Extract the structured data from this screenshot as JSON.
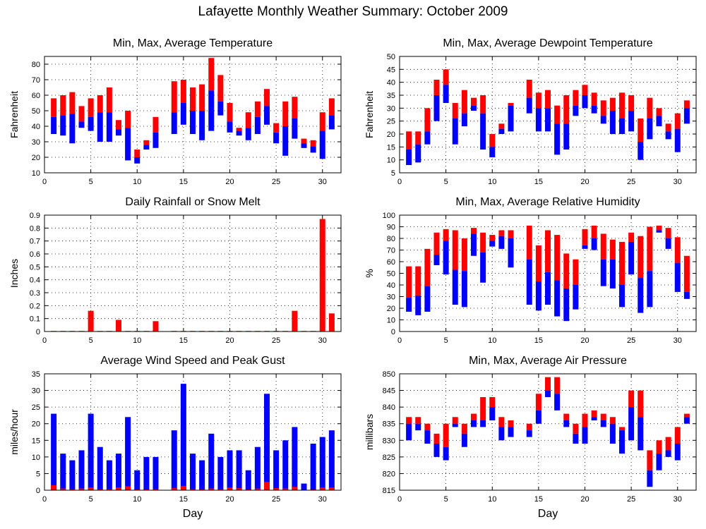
{
  "figure_title": "Lafayette Monthly Weather Summary: October 2009",
  "colors": {
    "max_part": "#ff0000",
    "min_part": "#0000ff",
    "grid": "#000000"
  },
  "chart_data": [
    {
      "id": "temp",
      "type": "bar",
      "title": "Min, Max, Average Temperature",
      "xlabel": "",
      "ylabel": "Fahrenheit",
      "xlim": [
        0,
        32
      ],
      "ylim": [
        10,
        85
      ],
      "xticks": [
        0,
        5,
        10,
        15,
        20,
        25,
        30
      ],
      "yticks": [
        10,
        20,
        30,
        40,
        50,
        60,
        70,
        80
      ],
      "days": [
        1,
        2,
        3,
        4,
        5,
        6,
        7,
        8,
        9,
        10,
        11,
        12,
        13,
        14,
        15,
        16,
        17,
        18,
        19,
        20,
        21,
        22,
        23,
        24,
        25,
        26,
        27,
        28,
        29,
        30,
        31
      ],
      "max": [
        58,
        60,
        62,
        53,
        58,
        60,
        65,
        44,
        50,
        25,
        31,
        46,
        null,
        69,
        70,
        65,
        67,
        84,
        73,
        55,
        39,
        49,
        56,
        64,
        42,
        56,
        59,
        32,
        31,
        49,
        58
      ],
      "avg": [
        46,
        47,
        48,
        43,
        46,
        49,
        49,
        38,
        39,
        20,
        28,
        36,
        null,
        49,
        55,
        50,
        50,
        63,
        56,
        43,
        37,
        39,
        46,
        53,
        36,
        40,
        45,
        29,
        27,
        37,
        47
      ],
      "min": [
        35,
        34,
        29,
        39,
        37,
        30,
        30,
        34,
        18,
        16,
        25,
        26,
        null,
        35,
        41,
        35,
        31,
        37,
        47,
        36,
        34,
        31,
        35,
        41,
        29,
        21,
        32,
        26,
        23,
        19,
        38
      ]
    },
    {
      "id": "dewpoint",
      "type": "bar",
      "title": "Min, Max, Average Dewpoint Temperature",
      "xlabel": "",
      "ylabel": "Fahrenheit",
      "xlim": [
        0,
        32
      ],
      "ylim": [
        5,
        50
      ],
      "xticks": [
        0,
        5,
        10,
        15,
        20,
        25,
        30
      ],
      "yticks": [
        5,
        10,
        15,
        20,
        25,
        30,
        35,
        40,
        45,
        50
      ],
      "days": [
        1,
        2,
        3,
        4,
        5,
        6,
        7,
        8,
        9,
        10,
        11,
        12,
        13,
        14,
        15,
        16,
        17,
        18,
        19,
        20,
        21,
        22,
        23,
        24,
        25,
        26,
        27,
        28,
        29,
        30,
        31
      ],
      "max": [
        21,
        21,
        30,
        41,
        45,
        32,
        37,
        34,
        35,
        20,
        24,
        32,
        null,
        41,
        36,
        37,
        31,
        35,
        37,
        39,
        36,
        33,
        34,
        36,
        35,
        26,
        34,
        30,
        24,
        28,
        33
      ],
      "avg": [
        14,
        16,
        21,
        35,
        39,
        26,
        28,
        31,
        28,
        15,
        22,
        31,
        null,
        34,
        30,
        30,
        24,
        24,
        31,
        35,
        31,
        27,
        29,
        26,
        29,
        17,
        26,
        27,
        21,
        22,
        30
      ],
      "min": [
        8,
        9,
        16,
        25,
        32,
        16,
        23,
        29,
        14,
        11,
        20,
        21,
        null,
        28,
        21,
        21,
        12,
        14,
        27,
        30,
        28,
        24,
        20,
        20,
        21,
        10,
        18,
        23,
        18,
        13,
        24
      ]
    },
    {
      "id": "rain",
      "type": "bar",
      "title": "Daily Rainfall or Snow Melt",
      "xlabel": "",
      "ylabel": "Inches",
      "xlim": [
        0,
        32
      ],
      "ylim": [
        0,
        0.9
      ],
      "xticks": [
        0,
        5,
        10,
        15,
        20,
        25,
        30
      ],
      "yticks": [
        0,
        0.1,
        0.2,
        0.3,
        0.4,
        0.5,
        0.6,
        0.7,
        0.8,
        0.9
      ],
      "ytick_labels": [
        "0",
        "0.1",
        "0.2",
        "0.3",
        "0.4",
        "0.5",
        "0.6",
        "0.7",
        "0.8",
        "0.9"
      ],
      "days": [
        1,
        2,
        3,
        4,
        5,
        6,
        7,
        8,
        9,
        10,
        11,
        12,
        13,
        14,
        15,
        16,
        17,
        18,
        19,
        20,
        21,
        22,
        23,
        24,
        25,
        26,
        27,
        28,
        29,
        30,
        31
      ],
      "values": [
        0,
        0,
        0,
        0,
        0.16,
        0,
        0,
        0.09,
        0,
        0,
        0,
        0.08,
        null,
        0,
        0,
        0,
        0,
        0,
        0,
        0,
        0,
        0,
        0,
        0,
        0,
        0,
        0.16,
        0,
        0,
        0.87,
        0.14
      ]
    },
    {
      "id": "humidity",
      "type": "bar",
      "title": "Min, Max, Average Relative Humidity",
      "xlabel": "",
      "ylabel": "%",
      "xlim": [
        0,
        32
      ],
      "ylim": [
        0,
        100
      ],
      "xticks": [
        0,
        5,
        10,
        15,
        20,
        25,
        30
      ],
      "yticks": [
        0,
        10,
        20,
        30,
        40,
        50,
        60,
        70,
        80,
        90,
        100
      ],
      "days": [
        1,
        2,
        3,
        4,
        5,
        6,
        7,
        8,
        9,
        10,
        11,
        12,
        13,
        14,
        15,
        16,
        17,
        18,
        19,
        20,
        21,
        22,
        23,
        24,
        25,
        26,
        27,
        28,
        29,
        30,
        31
      ],
      "max": [
        56,
        56,
        71,
        85,
        88,
        87,
        80,
        89,
        85,
        83,
        87,
        87,
        null,
        91,
        74,
        87,
        83,
        67,
        62,
        88,
        91,
        84,
        79,
        77,
        85,
        82,
        90,
        91,
        89,
        81,
        65
      ],
      "avg": [
        29,
        31,
        39,
        66,
        78,
        53,
        52,
        84,
        68,
        78,
        82,
        80,
        null,
        62,
        43,
        51,
        44,
        37,
        40,
        74,
        80,
        62,
        62,
        40,
        77,
        46,
        52,
        87,
        80,
        59,
        34
      ],
      "min": [
        17,
        14,
        17,
        57,
        49,
        23,
        21,
        65,
        42,
        73,
        71,
        55,
        null,
        23,
        18,
        23,
        13,
        9,
        19,
        71,
        70,
        39,
        37,
        21,
        49,
        16,
        21,
        85,
        71,
        34,
        28
      ]
    },
    {
      "id": "wind",
      "type": "bar",
      "title": "Average Wind Speed and Peak Gust",
      "xlabel": "Day",
      "ylabel": "miles/hour",
      "xlim": [
        0,
        32
      ],
      "ylim": [
        0,
        35
      ],
      "xticks": [
        0,
        5,
        10,
        15,
        20,
        25,
        30
      ],
      "yticks": [
        0,
        5,
        10,
        15,
        20,
        25,
        30,
        35
      ],
      "days": [
        1,
        2,
        3,
        4,
        5,
        6,
        7,
        8,
        9,
        10,
        11,
        12,
        13,
        14,
        15,
        16,
        17,
        18,
        19,
        20,
        21,
        22,
        23,
        24,
        25,
        26,
        27,
        28,
        29,
        30,
        31
      ],
      "peak_gust": [
        23,
        11,
        9,
        12,
        23,
        13,
        9,
        11,
        22,
        6,
        10,
        10,
        null,
        18,
        32,
        11,
        9,
        17,
        10,
        12,
        12,
        6,
        13,
        29,
        12,
        15,
        19,
        2,
        14,
        16,
        18
      ],
      "avg_speed": [
        1.5,
        0.5,
        0.3,
        0.5,
        0.8,
        0.3,
        0.3,
        0.8,
        1.2,
        0.2,
        0.2,
        0.3,
        null,
        0.6,
        1.3,
        0.3,
        0.3,
        0.5,
        0.3,
        0.8,
        0.6,
        0.2,
        0.5,
        2.5,
        0.6,
        0.5,
        1,
        0.1,
        0.2,
        0.8,
        0.8
      ]
    },
    {
      "id": "pressure",
      "type": "bar",
      "title": "Min, Max, Average Air Pressure",
      "xlabel": "Day",
      "ylabel": "millibars",
      "xlim": [
        0,
        32
      ],
      "ylim": [
        815,
        850
      ],
      "xticks": [
        0,
        5,
        10,
        15,
        20,
        25,
        30
      ],
      "yticks": [
        815,
        820,
        825,
        830,
        835,
        840,
        845,
        850
      ],
      "days": [
        1,
        2,
        3,
        4,
        5,
        6,
        7,
        8,
        9,
        10,
        11,
        12,
        13,
        14,
        15,
        16,
        17,
        18,
        19,
        20,
        21,
        22,
        23,
        24,
        25,
        26,
        27,
        28,
        29,
        30,
        31
      ],
      "max": [
        837,
        837,
        835,
        832,
        835,
        837,
        835,
        838,
        843,
        843,
        837,
        836,
        null,
        835,
        844,
        849,
        849,
        838,
        835,
        838,
        839,
        838,
        837,
        834,
        845,
        845,
        827,
        830,
        831,
        834,
        838
      ],
      "avg": [
        835,
        835,
        833,
        829,
        828,
        835,
        832,
        836,
        836,
        840,
        834,
        834,
        null,
        833,
        839,
        845,
        844,
        836,
        832,
        834,
        837,
        836,
        835,
        833,
        840,
        837,
        821,
        826,
        827,
        829,
        837
      ],
      "min": [
        830,
        833,
        829,
        825,
        824,
        834,
        828,
        834,
        834,
        836,
        830,
        831,
        null,
        831,
        835,
        843,
        839,
        834,
        829,
        829,
        836,
        834,
        829,
        826,
        830,
        827,
        816,
        821,
        825,
        824,
        835
      ]
    }
  ]
}
